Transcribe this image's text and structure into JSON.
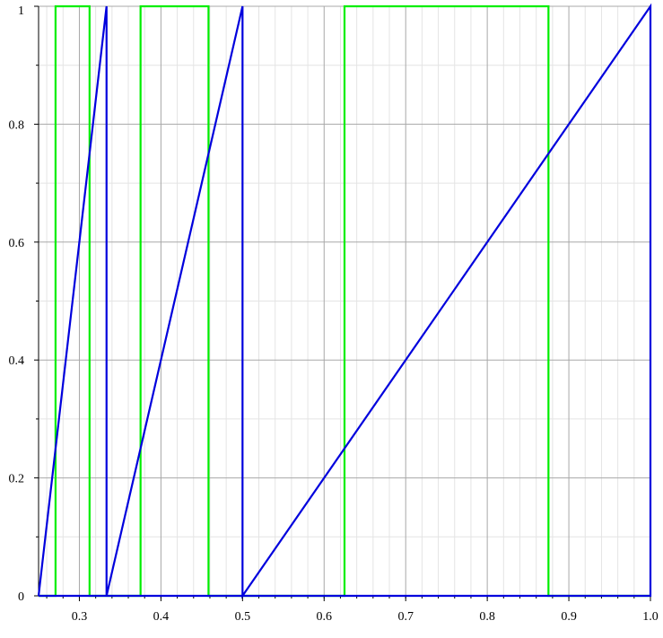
{
  "chart_data": {
    "type": "line",
    "title": "",
    "xlabel": "",
    "ylabel": "",
    "xlim": [
      0.25,
      1.0
    ],
    "ylim": [
      0,
      1
    ],
    "x_ticks": [
      0.3,
      0.4,
      0.5,
      0.6,
      0.7,
      0.8,
      0.9,
      1.0
    ],
    "x_tick_labels": [
      "0.3",
      "0.4",
      "0.5",
      "0.6",
      "0.7",
      "0.8",
      "0.9",
      "1.0"
    ],
    "y_ticks": [
      0,
      0.2,
      0.4,
      0.6,
      0.8,
      1
    ],
    "y_tick_labels": [
      "0",
      "0.2",
      "0.4",
      "0.6",
      "0.8",
      "1"
    ],
    "grid": true,
    "legend": "none",
    "series": [
      {
        "color": "#00ee00",
        "points": [
          [
            0.25,
            0
          ],
          [
            0.2708,
            0
          ],
          [
            0.2708,
            1
          ],
          [
            0.3125,
            1
          ],
          [
            0.3125,
            0
          ],
          [
            0.375,
            0
          ],
          [
            0.375,
            1
          ],
          [
            0.4583,
            1
          ],
          [
            0.4583,
            0
          ],
          [
            0.625,
            0
          ],
          [
            0.625,
            1
          ],
          [
            0.875,
            1
          ],
          [
            0.875,
            0
          ],
          [
            1.0,
            0
          ]
        ]
      },
      {
        "color": "#0000dd",
        "points": [
          [
            0.25,
            0
          ],
          [
            0.3333,
            1
          ],
          [
            0.3333,
            0
          ],
          [
            0.5,
            1
          ],
          [
            0.5,
            0
          ],
          [
            1.0,
            1
          ],
          [
            1.0,
            0
          ],
          [
            0.25,
            0
          ]
        ]
      }
    ]
  }
}
